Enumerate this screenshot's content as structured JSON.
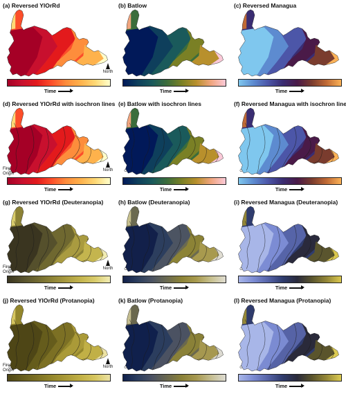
{
  "panels": [
    {
      "title": "(a) Reversed YlOrRd",
      "scheme": "yl",
      "cvd": "normal",
      "isochron": false,
      "annotations": "north"
    },
    {
      "title": "(b) Batlow",
      "scheme": "ba",
      "cvd": "normal",
      "isochron": false,
      "annotations": "none"
    },
    {
      "title": "(c) Reversed Managua",
      "scheme": "ma",
      "cvd": "normal",
      "isochron": false,
      "annotations": "none"
    },
    {
      "title": "(d) Reversed YlOrRd with isochron lines",
      "scheme": "yl",
      "cvd": "normal",
      "isochron": true,
      "annotations": "both"
    },
    {
      "title": "(e) Batlow with isochron lines",
      "scheme": "ba",
      "cvd": "normal",
      "isochron": true,
      "annotations": "none"
    },
    {
      "title": "(f) Reversed Managua with isochron lines",
      "scheme": "ma",
      "cvd": "normal",
      "isochron": true,
      "annotations": "none"
    },
    {
      "title": "(g) Reversed YlOrRd (Deuteranopia)",
      "scheme": "yl",
      "cvd": "deut",
      "isochron": true,
      "annotations": "both"
    },
    {
      "title": "(h) Batlow (Deuteranopia)",
      "scheme": "ba",
      "cvd": "deut",
      "isochron": true,
      "annotations": "none"
    },
    {
      "title": "(i) Reversed Managua (Deuteranopia)",
      "scheme": "ma",
      "cvd": "deut",
      "isochron": true,
      "annotations": "none"
    },
    {
      "title": "(j) Reversed YlOrRd (Protanopia)",
      "scheme": "yl",
      "cvd": "prot",
      "isochron": true,
      "annotations": "both"
    },
    {
      "title": "(k) Batlow (Protanopia)",
      "scheme": "ba",
      "cvd": "prot",
      "isochron": true,
      "annotations": "none"
    },
    {
      "title": "(l) Reversed Managua (Protanopia)",
      "scheme": "ma",
      "cvd": "prot",
      "isochron": true,
      "annotations": "none"
    }
  ],
  "labels": {
    "time": "Time",
    "north": "North",
    "fire_origin_line1": "Fire",
    "fire_origin_line2": "Origin"
  },
  "palettes": {
    "yl": {
      "normal": [
        "#a50026",
        "#c8102e",
        "#e31a1c",
        "#fc4e2a",
        "#fd8d3c",
        "#feb24c",
        "#fed976",
        "#ffffcc"
      ],
      "deut": [
        "#3a3520",
        "#55502c",
        "#6f6830",
        "#8c8236",
        "#a99b40",
        "#c4b54e",
        "#d9cc6c",
        "#f1ecb4"
      ],
      "prot": [
        "#4e4616",
        "#655c1c",
        "#7c7024",
        "#93862c",
        "#aa9a38",
        "#c1b046",
        "#d6c660",
        "#ece2a4"
      ]
    },
    "ba": {
      "normal": [
        "#011959",
        "#0e3f5c",
        "#1a5a5b",
        "#3c6d3b",
        "#7a8025",
        "#b8902c",
        "#f0a57e",
        "#fbc9d8"
      ],
      "deut": [
        "#12204a",
        "#2c3e5e",
        "#4c5462",
        "#6b6a50",
        "#8c8336",
        "#a89a4e",
        "#c7c08e",
        "#e0ddd2"
      ],
      "prot": [
        "#10204c",
        "#2b3d5e",
        "#4b5262",
        "#6a684e",
        "#8a8138",
        "#a69850",
        "#c4bd90",
        "#dddbd2"
      ]
    },
    "ma": {
      "normal": [
        "#7fc7ee",
        "#5d8bd0",
        "#4c56a8",
        "#3a2d72",
        "#4a1a48",
        "#7a3c2e",
        "#c06a35",
        "#fbb257"
      ],
      "deut": [
        "#a8b6e8",
        "#7c8cd4",
        "#5664a8",
        "#2f3c6e",
        "#2a2a3c",
        "#5a552e",
        "#938637",
        "#dac74e"
      ],
      "prot": [
        "#a8b6e8",
        "#7b8bd2",
        "#5663a6",
        "#2f3b6c",
        "#2a2a3a",
        "#5a542c",
        "#958838",
        "#dccb52"
      ]
    }
  }
}
